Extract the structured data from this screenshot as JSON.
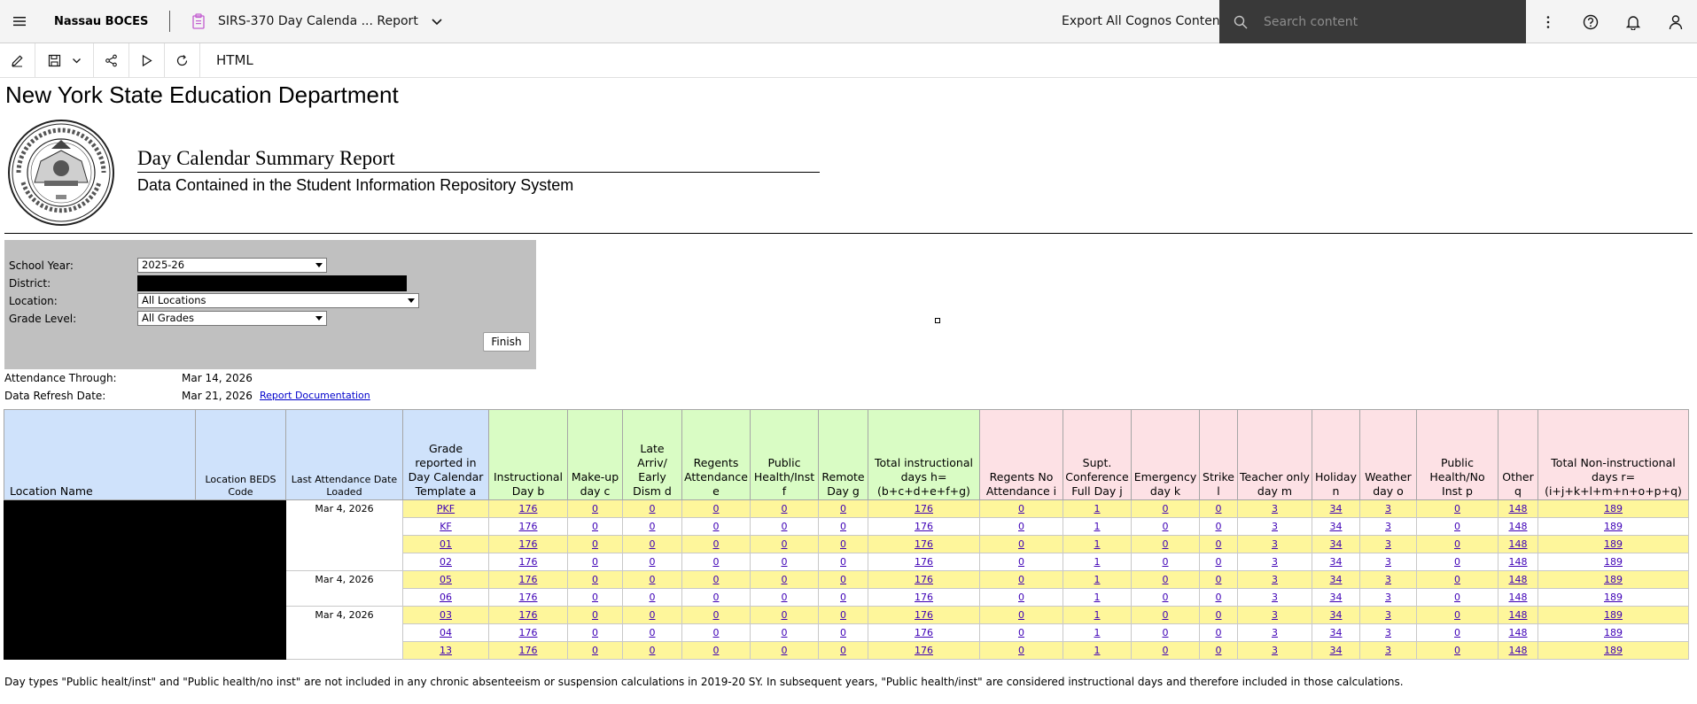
{
  "app": {
    "org": "Nassau BOCES",
    "report_title": "SIRS-370 Day Calenda ... Report",
    "export_label": "Export All Cognos Contents",
    "search_placeholder": "Search content"
  },
  "toolbar": {
    "format_label": "HTML"
  },
  "report": {
    "dept": "New York State Education Department",
    "title": "Day Calendar Summary Report",
    "subtitle": "Data Contained in the Student Information Repository System"
  },
  "prompts": {
    "school_year_label": "School Year:",
    "school_year_value": "2025-26",
    "district_label": "District:",
    "location_label": "Location:",
    "location_value": "All Locations",
    "grade_label": "Grade Level:",
    "grade_value": "All Grades",
    "finish_label": "Finish"
  },
  "meta": {
    "attendance_label": "Attendance Through:",
    "attendance_value": "Mar 14, 2026",
    "refresh_label": "Data Refresh Date:",
    "refresh_value": "Mar 21, 2026",
    "doc_link": "Report Documentation"
  },
  "table": {
    "headers": {
      "location_name": "Location Name",
      "beds": "Location BEDS Code",
      "last_att": "Last Attendance Date Loaded",
      "a": "Grade reported in Day Calendar Template a",
      "b": "Instructional Day b",
      "c": "Make-up day c",
      "d": "Late Arriv/ Early Dism d",
      "e": "Regents Attendance e",
      "f": "Public Health/Inst f",
      "g": "Remote Day g",
      "h": "Total instructional days h=(b+c+d+e+f+g)",
      "i": "Regents No Attendance i",
      "j": "Supt. Conference Full Day j",
      "k": "Emergency day k",
      "l": "Strike l",
      "m": "Teacher only day m",
      "n": "Holiday n",
      "o": "Weather day o",
      "p": "Public Health/No Inst p",
      "q": "Other q",
      "r": "Total Non-instructional days r=(i+j+k+l+m+n+o+p+q)"
    },
    "date_groups": [
      {
        "date": "Mar 4, 2026",
        "rows": 4
      },
      {
        "date": "Mar 4, 2026",
        "rows": 2
      },
      {
        "date": "Mar 4, 2026",
        "rows": 3
      }
    ],
    "rows": [
      {
        "grade": "PKF",
        "v": [
          "176",
          "0",
          "0",
          "0",
          "0",
          "0",
          "176",
          "0",
          "1",
          "0",
          "0",
          "3",
          "34",
          "3",
          "0",
          "148",
          "189"
        ]
      },
      {
        "grade": "KF",
        "v": [
          "176",
          "0",
          "0",
          "0",
          "0",
          "0",
          "176",
          "0",
          "1",
          "0",
          "0",
          "3",
          "34",
          "3",
          "0",
          "148",
          "189"
        ]
      },
      {
        "grade": "01",
        "v": [
          "176",
          "0",
          "0",
          "0",
          "0",
          "0",
          "176",
          "0",
          "1",
          "0",
          "0",
          "3",
          "34",
          "3",
          "0",
          "148",
          "189"
        ]
      },
      {
        "grade": "02",
        "v": [
          "176",
          "0",
          "0",
          "0",
          "0",
          "0",
          "176",
          "0",
          "1",
          "0",
          "0",
          "3",
          "34",
          "3",
          "0",
          "148",
          "189"
        ]
      },
      {
        "grade": "05",
        "v": [
          "176",
          "0",
          "0",
          "0",
          "0",
          "0",
          "176",
          "0",
          "1",
          "0",
          "0",
          "3",
          "34",
          "3",
          "0",
          "148",
          "189"
        ]
      },
      {
        "grade": "06",
        "v": [
          "176",
          "0",
          "0",
          "0",
          "0",
          "0",
          "176",
          "0",
          "1",
          "0",
          "0",
          "3",
          "34",
          "3",
          "0",
          "148",
          "189"
        ]
      },
      {
        "grade": "03",
        "v": [
          "176",
          "0",
          "0",
          "0",
          "0",
          "0",
          "176",
          "0",
          "1",
          "0",
          "0",
          "3",
          "34",
          "3",
          "0",
          "148",
          "189"
        ]
      },
      {
        "grade": "04",
        "v": [
          "176",
          "0",
          "0",
          "0",
          "0",
          "0",
          "176",
          "0",
          "1",
          "0",
          "0",
          "3",
          "34",
          "3",
          "0",
          "148",
          "189"
        ]
      },
      {
        "grade": "13",
        "v": [
          "176",
          "0",
          "0",
          "0",
          "0",
          "0",
          "176",
          "0",
          "1",
          "0",
          "0",
          "3",
          "34",
          "3",
          "0",
          "148",
          "189"
        ]
      }
    ]
  },
  "footnote": "Day types \"Public healt/inst\" and \"Public health/no inst\" are not included in any chronic absenteeism or suspension calculations in 2019-20 SY. In subsequent years, \"Public health/inst\" are considered instructional days and therefore included in those calculations.",
  "colors": {
    "header_blue": "#cfe2fb",
    "header_green": "#d9fcc4",
    "header_pink": "#fde1e5",
    "row_yellow": "#fef69b",
    "link": "#3e00b6"
  }
}
